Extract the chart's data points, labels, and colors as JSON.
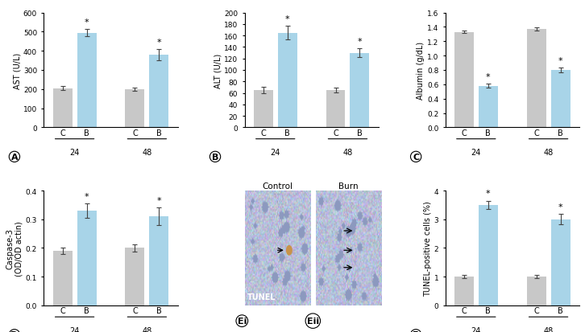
{
  "panel_A": {
    "ylabel": "AST (U/L)",
    "ylim": [
      0,
      600
    ],
    "yticks": [
      0,
      100,
      200,
      300,
      400,
      500,
      600
    ],
    "groups": [
      "24",
      "48"
    ],
    "C_values": [
      205,
      200
    ],
    "B_values": [
      495,
      380
    ],
    "C_errors": [
      10,
      8
    ],
    "B_errors": [
      18,
      30
    ],
    "star_on_B": [
      true,
      true
    ],
    "star_on_C": [
      false,
      false
    ],
    "label": "A"
  },
  "panel_B": {
    "ylabel": "ALT (U/L)",
    "ylim": [
      0,
      200
    ],
    "yticks": [
      0,
      20,
      40,
      60,
      80,
      100,
      120,
      140,
      160,
      180,
      200
    ],
    "groups": [
      "24",
      "48"
    ],
    "C_values": [
      65,
      65
    ],
    "B_values": [
      165,
      130
    ],
    "C_errors": [
      5,
      4
    ],
    "B_errors": [
      12,
      8
    ],
    "star_on_B": [
      true,
      true
    ],
    "star_on_C": [
      false,
      false
    ],
    "label": "B"
  },
  "panel_C": {
    "ylabel": "Albumin (g/dL)",
    "ylim": [
      0.0,
      1.6
    ],
    "yticks": [
      0.0,
      0.2,
      0.4,
      0.6,
      0.8,
      1.0,
      1.2,
      1.4,
      1.6
    ],
    "groups": [
      "24",
      "48"
    ],
    "C_values": [
      1.33,
      1.37
    ],
    "B_values": [
      0.58,
      0.8
    ],
    "C_errors": [
      0.02,
      0.02
    ],
    "B_errors": [
      0.03,
      0.03
    ],
    "star_on_B": [
      true,
      true
    ],
    "star_on_C": [
      false,
      false
    ],
    "label": "C"
  },
  "panel_D": {
    "ylabel": "Caspase-3\n(OD/OD actin)",
    "ylim": [
      0.0,
      0.4
    ],
    "yticks": [
      0.0,
      0.1,
      0.2,
      0.3,
      0.4
    ],
    "groups": [
      "24",
      "48"
    ],
    "C_values": [
      0.19,
      0.2
    ],
    "B_values": [
      0.33,
      0.31
    ],
    "C_errors": [
      0.012,
      0.012
    ],
    "B_errors": [
      0.025,
      0.03
    ],
    "star_on_B": [
      true,
      true
    ],
    "star_on_C": [
      false,
      false
    ],
    "label": "D"
  },
  "panel_F": {
    "ylabel": "TUNEL-positive cells (%)",
    "ylim": [
      0,
      4
    ],
    "yticks": [
      0,
      1,
      2,
      3,
      4
    ],
    "groups": [
      "24",
      "48"
    ],
    "C_values": [
      1.0,
      1.0
    ],
    "B_values": [
      3.5,
      3.0
    ],
    "C_errors": [
      0.05,
      0.05
    ],
    "B_errors": [
      0.15,
      0.18
    ],
    "star_on_B": [
      true,
      true
    ],
    "star_on_C": [
      false,
      false
    ],
    "label": "F"
  },
  "bar_color_C": "#c8c8c8",
  "bar_color_B": "#a8d4e8",
  "bar_width": 0.32,
  "bar_gap": 0.08,
  "group_sep": 1.2,
  "star_fontsize": 8,
  "label_fontsize": 7,
  "tick_fontsize": 6.5,
  "axis_label_fontsize": 7,
  "panel_label_fontsize": 8,
  "bg_color": "#ffffff",
  "Ei_title": "Control",
  "Eii_title": "Burn",
  "tunel_label": "TUNEL",
  "Ei_label": "Ei",
  "Eii_label": "Eii"
}
